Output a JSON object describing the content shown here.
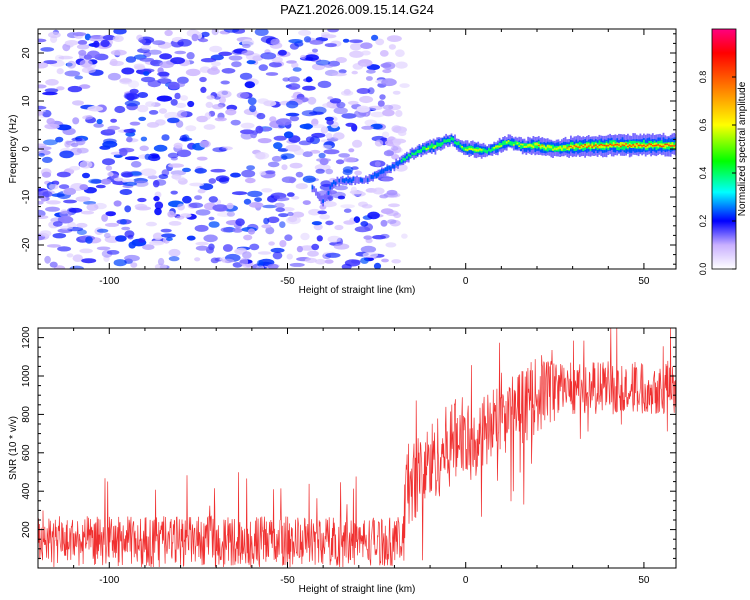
{
  "chart_data": [
    {
      "type": "heatmap",
      "title": "PAZ1.2026.009.15.14.G24",
      "xlabel": "Height of straight line (km)",
      "ylabel": "Frequency (Hz)",
      "xlim": [
        -120,
        59
      ],
      "ylim": [
        -25,
        25
      ],
      "xticks": [
        -100,
        -50,
        0,
        50
      ],
      "yticks": [
        -20,
        -10,
        0,
        10,
        20
      ],
      "colorbar": {
        "label": "Normalized spectral amplitude",
        "range": [
          0,
          1
        ],
        "ticks": [
          0.0,
          0.2,
          0.4,
          0.6,
          0.8
        ]
      },
      "noise_region": {
        "x_range": [
          -120,
          -17
        ],
        "y_range": [
          -25,
          25
        ],
        "typical_amplitude": 0.1
      },
      "ridge": {
        "x": [
          -43,
          -40,
          -37,
          -33,
          -28,
          -24,
          -21,
          -19,
          -17,
          -15,
          -12,
          -9,
          -6,
          -4,
          -2,
          0,
          3,
          6,
          9,
          12,
          14,
          17,
          20,
          25,
          30,
          40,
          50,
          59
        ],
        "freq": [
          -8,
          -11,
          -7,
          -6.5,
          -6.5,
          -5,
          -4,
          -3,
          -2,
          -1,
          0,
          0.5,
          1.5,
          2,
          1,
          0,
          0,
          -0.5,
          0.5,
          1.5,
          1,
          0.5,
          0.8,
          0,
          0.5,
          0.8,
          0.8,
          0.8
        ],
        "amplitude": [
          0.2,
          0.2,
          0.25,
          0.25,
          0.2,
          0.3,
          0.25,
          0.3,
          0.4,
          0.4,
          0.5,
          0.6,
          0.5,
          0.45,
          0.5,
          0.6,
          0.7,
          0.45,
          0.6,
          0.55,
          0.55,
          0.65,
          0.8,
          0.7,
          0.9,
          0.95,
          0.95,
          0.97
        ]
      }
    },
    {
      "type": "line",
      "xlabel": "Height of straight line (km)",
      "ylabel": "SNR (10 * v/v)",
      "xlim": [
        -120,
        59
      ],
      "ylim": [
        0,
        1250
      ],
      "xticks": [
        -100,
        -50,
        0,
        50
      ],
      "yticks": [
        200,
        400,
        600,
        800,
        1000,
        1200
      ],
      "color": "#f03030",
      "segments": [
        {
          "x_range": [
            -120,
            -17
          ],
          "mean": 140,
          "spread": 130,
          "peak": 520
        },
        {
          "x_range": [
            -17,
            0
          ],
          "mean": 680,
          "spread": 220,
          "peak": 1090
        },
        {
          "x_range": [
            0,
            25
          ],
          "mean": 800,
          "spread": 200,
          "peak": 1250
        },
        {
          "x_range": [
            25,
            59
          ],
          "mean": 940,
          "spread": 140,
          "peak": 1250
        }
      ]
    }
  ]
}
